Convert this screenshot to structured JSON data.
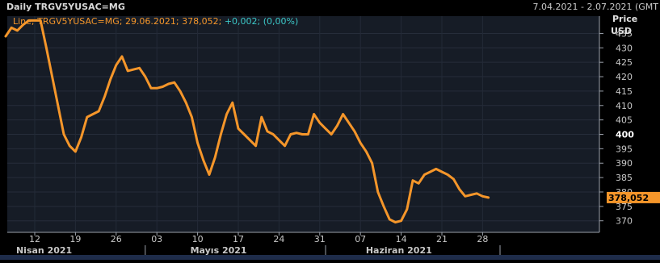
{
  "header": {
    "title": "Daily TRGV5YUSAC=MG",
    "date_range": "7.04.2021 - 2.07.2021 (GMT"
  },
  "legend": {
    "prefix": "Line; TRGV5YUSAC=MG; 29.06.2021; 378,052;",
    "change": "+0,002; (0,00%)"
  },
  "axis": {
    "price_label": "Price",
    "currency_label": "USD",
    "last_value_label": "378,052"
  },
  "colors": {
    "background": "#000000",
    "plot_background": "#161c26",
    "line": "#f5962a",
    "legend_change": "#3cc8c8",
    "grid": "#2a3140",
    "text": "#c8c8c8",
    "bottom_strip": "#1e2c4a"
  },
  "chart_data": {
    "type": "line",
    "title": "Daily TRGV5YUSAC=MG",
    "ylim": [
      366,
      441
    ],
    "y_ticks": [
      {
        "value": 435,
        "label": "435"
      },
      {
        "value": 430,
        "label": "430"
      },
      {
        "value": 425,
        "label": "425"
      },
      {
        "value": 420,
        "label": "420"
      },
      {
        "value": 415,
        "label": "415"
      },
      {
        "value": 410,
        "label": "410"
      },
      {
        "value": 405,
        "label": "405"
      },
      {
        "value": 400,
        "label": "400",
        "bold": true
      },
      {
        "value": 395,
        "label": "395"
      },
      {
        "value": 390,
        "label": "390"
      },
      {
        "value": 385,
        "label": "385"
      },
      {
        "value": 380,
        "label": "380"
      },
      {
        "value": 375,
        "label": "375"
      },
      {
        "value": 370,
        "label": "370"
      }
    ],
    "x_ticks": [
      {
        "date": "2021-04-12",
        "label": "12"
      },
      {
        "date": "2021-04-19",
        "label": "19"
      },
      {
        "date": "2021-04-26",
        "label": "26"
      },
      {
        "date": "2021-05-03",
        "label": "03"
      },
      {
        "date": "2021-05-10",
        "label": "10"
      },
      {
        "date": "2021-05-17",
        "label": "17"
      },
      {
        "date": "2021-05-24",
        "label": "24"
      },
      {
        "date": "2021-05-31",
        "label": "31"
      },
      {
        "date": "2021-06-07",
        "label": "07"
      },
      {
        "date": "2021-06-14",
        "label": "14"
      },
      {
        "date": "2021-06-21",
        "label": "21"
      },
      {
        "date": "2021-06-28",
        "label": "28"
      }
    ],
    "months": [
      {
        "date": "2021-04-15",
        "label": "Nisan 2021"
      },
      {
        "date": "2021-05-15",
        "label": "Mayıs 2021"
      },
      {
        "date": "2021-06-15",
        "label": "Haziran 2021"
      }
    ],
    "month_separators": [
      "2021-05-01",
      "2021-06-01",
      "2021-07-01"
    ],
    "series": [
      {
        "points": [
          [
            "2021-04-07",
            434
          ],
          [
            "2021-04-08",
            437
          ],
          [
            "2021-04-09",
            436
          ],
          [
            "2021-04-10",
            438
          ],
          [
            "2021-04-11",
            439.5
          ],
          [
            "2021-04-12",
            439.5
          ],
          [
            "2021-04-13",
            439.5
          ],
          [
            "2021-04-14",
            430
          ],
          [
            "2021-04-15",
            420
          ],
          [
            "2021-04-16",
            410
          ],
          [
            "2021-04-17",
            400
          ],
          [
            "2021-04-18",
            396
          ],
          [
            "2021-04-19",
            394
          ],
          [
            "2021-04-20",
            399
          ],
          [
            "2021-04-21",
            406
          ],
          [
            "2021-04-22",
            407
          ],
          [
            "2021-04-23",
            408
          ],
          [
            "2021-04-24",
            413
          ],
          [
            "2021-04-25",
            419
          ],
          [
            "2021-04-26",
            424
          ],
          [
            "2021-04-27",
            427
          ],
          [
            "2021-04-28",
            422
          ],
          [
            "2021-04-29",
            422.5
          ],
          [
            "2021-04-30",
            423
          ],
          [
            "2021-05-01",
            420
          ],
          [
            "2021-05-02",
            416
          ],
          [
            "2021-05-03",
            416
          ],
          [
            "2021-05-04",
            416.5
          ],
          [
            "2021-05-05",
            417.5
          ],
          [
            "2021-05-06",
            418
          ],
          [
            "2021-05-07",
            415
          ],
          [
            "2021-05-08",
            411
          ],
          [
            "2021-05-09",
            406
          ],
          [
            "2021-05-10",
            397
          ],
          [
            "2021-05-11",
            391
          ],
          [
            "2021-05-12",
            386
          ],
          [
            "2021-05-13",
            392
          ],
          [
            "2021-05-14",
            400
          ],
          [
            "2021-05-15",
            407
          ],
          [
            "2021-05-16",
            411
          ],
          [
            "2021-05-17",
            402
          ],
          [
            "2021-05-18",
            400
          ],
          [
            "2021-05-19",
            398
          ],
          [
            "2021-05-20",
            396
          ],
          [
            "2021-05-21",
            406
          ],
          [
            "2021-05-22",
            401
          ],
          [
            "2021-05-23",
            400
          ],
          [
            "2021-05-24",
            398
          ],
          [
            "2021-05-25",
            396
          ],
          [
            "2021-05-26",
            400
          ],
          [
            "2021-05-27",
            400.5
          ],
          [
            "2021-05-28",
            400
          ],
          [
            "2021-05-29",
            400
          ],
          [
            "2021-05-30",
            407
          ],
          [
            "2021-05-31",
            404
          ],
          [
            "2021-06-01",
            402
          ],
          [
            "2021-06-02",
            400
          ],
          [
            "2021-06-03",
            403
          ],
          [
            "2021-06-04",
            407
          ],
          [
            "2021-06-05",
            404
          ],
          [
            "2021-06-06",
            401
          ],
          [
            "2021-06-07",
            397
          ],
          [
            "2021-06-08",
            394
          ],
          [
            "2021-06-09",
            390
          ],
          [
            "2021-06-10",
            380
          ],
          [
            "2021-06-11",
            375
          ],
          [
            "2021-06-12",
            370.5
          ],
          [
            "2021-06-13",
            369.5
          ],
          [
            "2021-06-14",
            370
          ],
          [
            "2021-06-15",
            374
          ],
          [
            "2021-06-16",
            384
          ],
          [
            "2021-06-17",
            383
          ],
          [
            "2021-06-18",
            386
          ],
          [
            "2021-06-19",
            387
          ],
          [
            "2021-06-20",
            388
          ],
          [
            "2021-06-21",
            387
          ],
          [
            "2021-06-22",
            386
          ],
          [
            "2021-06-23",
            384.5
          ],
          [
            "2021-06-24",
            381
          ],
          [
            "2021-06-25",
            378.5
          ],
          [
            "2021-06-26",
            379
          ],
          [
            "2021-06-27",
            379.5
          ],
          [
            "2021-06-28",
            378.5
          ],
          [
            "2021-06-29",
            378.052
          ]
        ]
      }
    ]
  }
}
